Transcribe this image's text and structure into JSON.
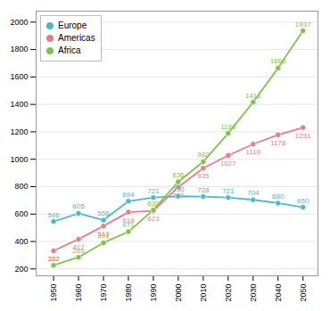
{
  "chart_data": {
    "type": "line",
    "x": [
      1950,
      1960,
      1970,
      1980,
      1990,
      2000,
      2010,
      2020,
      2030,
      2040,
      2050
    ],
    "series": [
      {
        "name": "Europe",
        "color": "#4db8c8",
        "values": [
          546,
          605,
          556,
          694,
          721,
          730,
          728,
          721,
          704,
          680,
          650
        ]
      },
      {
        "name": "Americas",
        "color": "#e87a8a",
        "values": [
          332,
          417,
          513,
          614,
          623,
          797,
          935,
          1027,
          1110,
          1178,
          1231
        ]
      },
      {
        "name": "Africa",
        "color": "#7cc44e",
        "values": [
          227,
          285,
          391,
          471,
          630,
          836,
          982,
          1189,
          1416,
          1665,
          1937
        ]
      }
    ],
    "xlim": [
      1943,
      2056
    ],
    "xticks": [
      1950,
      1960,
      1970,
      1980,
      1990,
      2000,
      2010,
      2020,
      2030,
      2040,
      2050
    ],
    "ylim": [
      150,
      2080
    ],
    "yticks": [
      200,
      400,
      600,
      800,
      1000,
      1200,
      1400,
      1600,
      1800,
      2000
    ],
    "grid": true,
    "legend": "upper left",
    "data_labels": true,
    "marker": "circle"
  }
}
